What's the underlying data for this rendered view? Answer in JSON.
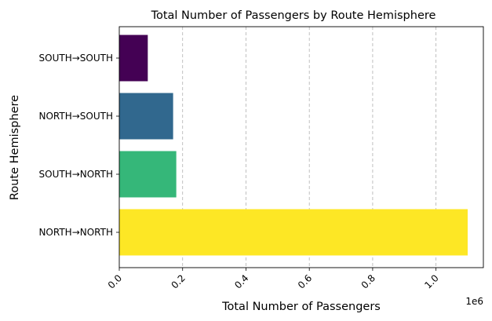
{
  "chart_data": {
    "type": "bar",
    "orientation": "horizontal",
    "title": "Total Number of Passengers by Route Hemisphere",
    "xlabel": "Total Number of Passengers",
    "ylabel": "Route Hemisphere",
    "x_offset_label": "1e6",
    "xlim": [
      0,
      1.1
    ],
    "x_ticks": [
      "0.0",
      "0.2",
      "0.4",
      "0.6",
      "0.8",
      "1.0"
    ],
    "x_tick_values": [
      0,
      0.2,
      0.4,
      0.6,
      0.8,
      1.0
    ],
    "categories": [
      "NORTH→NORTH",
      "SOUTH→NORTH",
      "NORTH→SOUTH",
      "SOUTH→SOUTH"
    ],
    "values": [
      1.1,
      0.18,
      0.17,
      0.09
    ],
    "colors": [
      "#fde725",
      "#35b779",
      "#31688e",
      "#440154"
    ],
    "grid": "x-dashed",
    "legend": "none"
  }
}
